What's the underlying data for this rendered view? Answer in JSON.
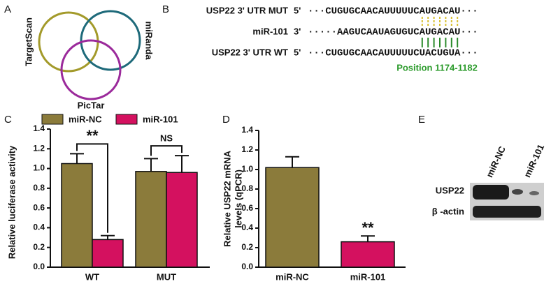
{
  "venn": {
    "panel_label": "A",
    "circles": [
      "TargetScan",
      "miRanda",
      "PicTar"
    ]
  },
  "sequence": {
    "panel_label": "B",
    "rows": [
      {
        "label": "USP22 3' UTR MUT",
        "end": "5'",
        "seq": "···CUGUGCAACAUUUUUCAUGACAU···"
      },
      {
        "label": "miR-101",
        "end": "3'",
        "seq": "·····AAGUCAAUAGUGUCAUGACAU···"
      },
      {
        "label": "USP22 3' UTR WT",
        "end": "5'",
        "seq": "···CUGUGCAACAUUUUUCUACUGUA···"
      }
    ],
    "position": "Position 1174-1182"
  },
  "chart_data": [
    {
      "type": "bar",
      "panel_label": "C",
      "ylabel": "Relative luciferase activity",
      "categories": [
        "WT",
        "MUT"
      ],
      "series": [
        {
          "name": "miR-NC",
          "color": "#8b7b3b",
          "values": [
            1.05,
            0.97
          ],
          "errors": [
            0.1,
            0.13
          ]
        },
        {
          "name": "miR-101",
          "color": "#d4115f",
          "values": [
            0.28,
            0.96
          ],
          "errors": [
            0.04,
            0.17
          ]
        }
      ],
      "annotations": [
        "**",
        "NS"
      ],
      "ylim": [
        0,
        1.4
      ],
      "yticks": [
        {
          "value": 0,
          "label": "0.0"
        },
        0.2,
        0.4,
        0.6,
        0.8,
        {
          "value": 1,
          "label": "1.0"
        },
        1.2,
        1.4
      ]
    },
    {
      "type": "bar",
      "panel_label": "D",
      "ylabel": [
        "Relative USP22 mRNA",
        "levels (qPCR)"
      ],
      "categories": [
        "miR-NC",
        "miR-101"
      ],
      "values": [
        1.02,
        0.26
      ],
      "errors": [
        0.11,
        0.06
      ],
      "colors": [
        "#8b7b3b",
        "#d4115f"
      ],
      "annotations": [
        "**"
      ],
      "ylim": [
        0,
        1.4
      ],
      "yticks": [
        {
          "value": 0,
          "label": "0.0"
        },
        0.2,
        0.4,
        0.6,
        0.8,
        {
          "value": 1,
          "label": "1.0"
        },
        1.2,
        1.4
      ]
    }
  ],
  "blot": {
    "panel_label": "E",
    "lanes": [
      "miR-NC",
      "miR-101"
    ],
    "bands": [
      "USP22",
      "β -actin"
    ]
  }
}
